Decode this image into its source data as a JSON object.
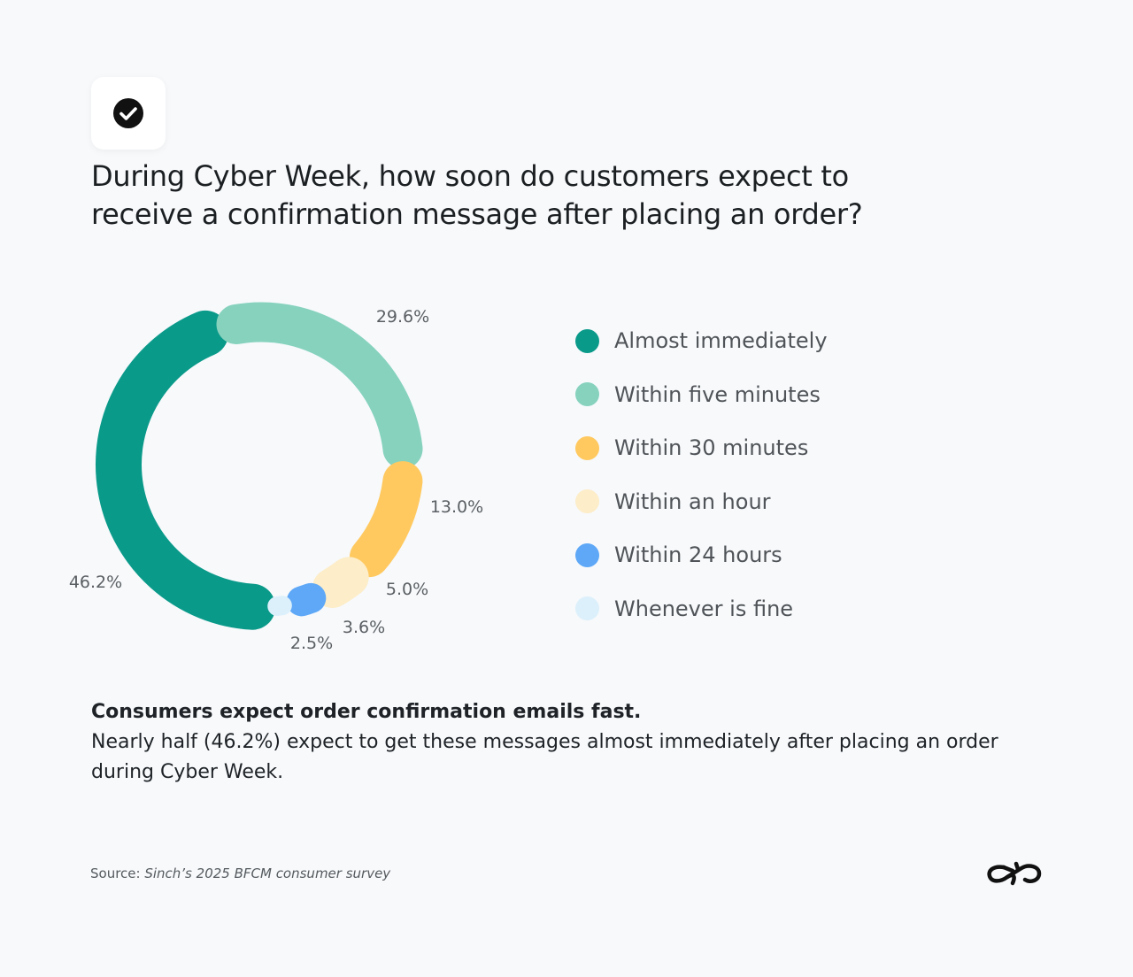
{
  "header": {
    "icon": "check-circle-icon",
    "title": "During Cyber Week, how soon do customers expect to receive a confirmation message after placing an order?"
  },
  "chart_data": {
    "type": "pie",
    "style": "donut",
    "categories": [
      "Almost immediately",
      "Within five minutes",
      "Within 30 minutes",
      "Within an hour",
      "Within 24 hours",
      "Whenever is fine"
    ],
    "values": [
      46.2,
      29.6,
      13.0,
      5.0,
      3.6,
      2.5
    ],
    "data_labels": [
      "46.2%",
      "29.6%",
      "13.0%",
      "5.0%",
      "3.6%",
      "2.5%"
    ],
    "colors": [
      "#0a9a8a",
      "#86d2bd",
      "#ffc95f",
      "#fdedc8",
      "#5ea8f7",
      "#dcf0fb"
    ],
    "legend_placement": "right"
  },
  "summary": {
    "heading": "Consumers expect order confirmation emails fast.",
    "body": "Nearly half (46.2%) expect to get these messages almost immediately after placing an order during Cyber Week."
  },
  "footer": {
    "source_prefix": "Source: ",
    "source_text": "Sinch’s 2025 BFCM consumer survey",
    "logo": "sinch-logo"
  }
}
